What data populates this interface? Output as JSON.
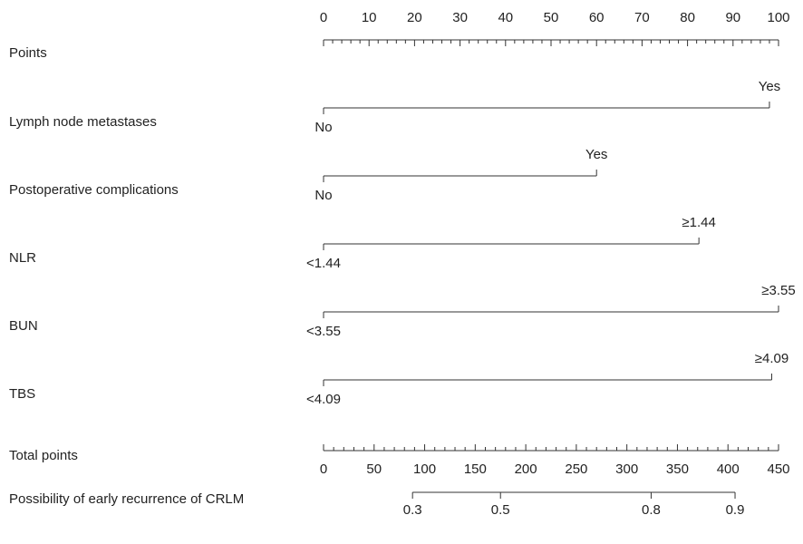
{
  "chart_data": {
    "type": "nomogram",
    "points_axis": {
      "label": "Points",
      "xlim": [
        0,
        100
      ],
      "xticks": [
        0,
        10,
        20,
        30,
        40,
        50,
        60,
        70,
        80,
        90,
        100
      ]
    },
    "variables": [
      {
        "name": "Lymph node metastases",
        "levels": [
          "No",
          "Yes"
        ],
        "points": [
          0,
          98
        ]
      },
      {
        "name": "Postoperative complications",
        "levels": [
          "No",
          "Yes"
        ],
        "points": [
          0,
          60
        ]
      },
      {
        "name": "NLR",
        "levels": [
          "<1.44",
          "≥1.44"
        ],
        "points": [
          0,
          82.5
        ]
      },
      {
        "name": "BUN",
        "levels": [
          "<3.55",
          "≥3.55"
        ],
        "points": [
          0,
          100
        ]
      },
      {
        "name": "TBS",
        "levels": [
          "<4.09",
          "≥4.09"
        ],
        "points": [
          0,
          98.5
        ]
      }
    ],
    "total_axis": {
      "label": "Total points",
      "xlim": [
        0,
        450
      ],
      "xticks": [
        0,
        50,
        100,
        150,
        200,
        250,
        300,
        350,
        400,
        450
      ]
    },
    "probability_axis": {
      "label": "Possibility of early recurrence of CRLM",
      "ticks": [
        {
          "value": 0.3,
          "total_points": 88
        },
        {
          "value": 0.5,
          "total_points": 175
        },
        {
          "value": 0.8,
          "total_points": 324
        },
        {
          "value": 0.9,
          "total_points": 407
        }
      ]
    },
    "color": "#333333"
  }
}
